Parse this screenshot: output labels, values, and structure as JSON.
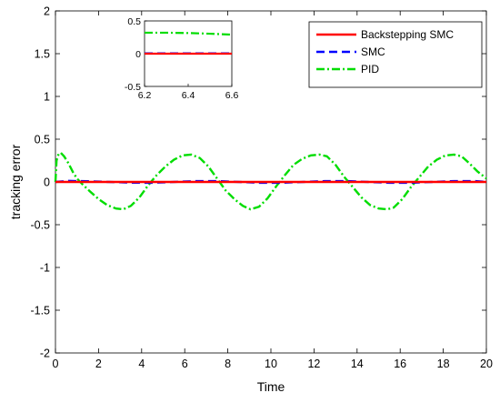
{
  "chart_data": {
    "type": "line",
    "xlabel": "Time",
    "ylabel": "tracking error",
    "xlim": [
      0,
      20
    ],
    "ylim": [
      -2,
      2
    ],
    "x_ticks": [
      "0",
      "2",
      "4",
      "6",
      "8",
      "10",
      "12",
      "14",
      "16",
      "18",
      "20"
    ],
    "y_ticks": [
      "-2",
      "-1.5",
      "-1",
      "-0.5",
      "0",
      "0.5",
      "1",
      "1.5",
      "2"
    ],
    "grid": false,
    "legend_position": "top-right",
    "series": [
      {
        "name": "Backstepping SMC",
        "color": "#ff0000",
        "style": "solid",
        "x": [
          0,
          5,
          10,
          15,
          20
        ],
        "y": [
          0,
          0,
          0,
          0,
          0
        ]
      },
      {
        "name": "SMC",
        "color": "#0000ff",
        "style": "dashed",
        "x": [
          0,
          0.6,
          1.5,
          2.5,
          3.5,
          4.5,
          5.5,
          6.5,
          7.5,
          8.5,
          9.5,
          10.5,
          11.5,
          12.5,
          13.5,
          14.5,
          15.5,
          16.5,
          17.5,
          18.5,
          19.5,
          20
        ],
        "y": [
          0,
          0.012,
          0.008,
          0.0,
          -0.008,
          -0.01,
          0.0,
          0.01,
          0.01,
          0.0,
          -0.01,
          -0.01,
          0.0,
          0.01,
          0.01,
          0.0,
          -0.01,
          -0.01,
          0.0,
          0.01,
          0.01,
          0.0
        ]
      },
      {
        "name": "PID",
        "color": "#00dd00",
        "style": "dashdot",
        "x": [
          0,
          0.05,
          0.15,
          0.25,
          0.4,
          0.6,
          0.8,
          1.0,
          1.3,
          1.6,
          2.0,
          2.4,
          2.8,
          3.15,
          3.5,
          3.9,
          4.3,
          4.7,
          5.1,
          5.5,
          5.9,
          6.3,
          6.7,
          7.1,
          7.5,
          7.9,
          8.3,
          8.7,
          9.05,
          9.45,
          9.85,
          10.25,
          10.65,
          11.05,
          11.45,
          11.85,
          12.25,
          12.6,
          13.0,
          13.4,
          13.8,
          14.2,
          14.6,
          15.0,
          15.4,
          15.7,
          16.1,
          16.5,
          16.9,
          17.3,
          17.7,
          18.1,
          18.5,
          18.85,
          19.2,
          19.6,
          20.0
        ],
        "y": [
          0,
          0.25,
          0.33,
          0.34,
          0.3,
          0.22,
          0.12,
          0.04,
          -0.04,
          -0.11,
          -0.2,
          -0.27,
          -0.31,
          -0.32,
          -0.28,
          -0.18,
          -0.04,
          0.08,
          0.18,
          0.26,
          0.31,
          0.32,
          0.28,
          0.18,
          0.04,
          -0.1,
          -0.2,
          -0.28,
          -0.32,
          -0.29,
          -0.19,
          -0.05,
          0.08,
          0.2,
          0.27,
          0.31,
          0.32,
          0.3,
          0.2,
          0.06,
          -0.06,
          -0.18,
          -0.27,
          -0.31,
          -0.32,
          -0.3,
          -0.2,
          -0.06,
          0.06,
          0.18,
          0.26,
          0.31,
          0.32,
          0.3,
          0.22,
          0.12,
          0.04
        ]
      }
    ],
    "inset": {
      "xlim": [
        6.2,
        6.6
      ],
      "ylim": [
        -0.5,
        0.5
      ],
      "x_ticks": [
        "6.2",
        "6.4",
        "6.6"
      ],
      "y_ticks": [
        "-0.5",
        "0",
        "0.5"
      ],
      "series": [
        {
          "name": "Backstepping SMC",
          "x": [
            6.2,
            6.6
          ],
          "y": [
            0,
            0
          ]
        },
        {
          "name": "SMC",
          "x": [
            6.2,
            6.6
          ],
          "y": [
            0.005,
            0.005
          ]
        },
        {
          "name": "PID",
          "x": [
            6.2,
            6.3,
            6.4,
            6.5,
            6.6
          ],
          "y": [
            0.32,
            0.32,
            0.315,
            0.305,
            0.29
          ]
        }
      ]
    }
  }
}
